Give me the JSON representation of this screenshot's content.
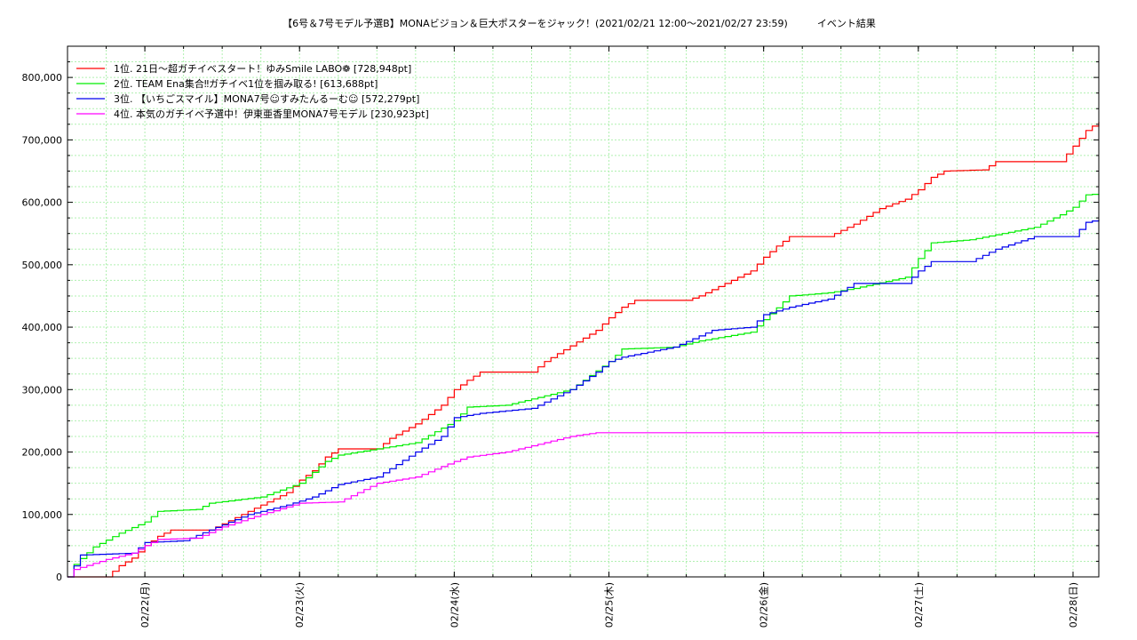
{
  "chart_data": {
    "type": "line",
    "title": "【6号＆7号モデル予選B】MONAビジョン＆巨大ポスターをジャック！(2021/02/21 12:00〜2021/02/27 23:59)　　　イベント結果",
    "xlabel": "",
    "ylabel": "",
    "x_range": [
      "2021-02-21 12:00",
      "2021-02-28 04:00"
    ],
    "ylim": [
      0,
      850000
    ],
    "y_ticks": [
      0,
      100000,
      200000,
      300000,
      400000,
      500000,
      600000,
      700000,
      800000
    ],
    "y_tick_labels": [
      "0",
      "100,000",
      "200,000",
      "300,000",
      "400,000",
      "500,000",
      "600,000",
      "700,000",
      "800,000"
    ],
    "x_ticks": [
      "2021-02-22",
      "2021-02-23",
      "2021-02-24",
      "2021-02-25",
      "2021-02-26",
      "2021-02-27",
      "2021-02-28"
    ],
    "x_tick_labels": [
      "02/22(月)",
      "02/23(火)",
      "02/24(水)",
      "02/25(木)",
      "02/26(金)",
      "02/27(土)",
      "02/28(日)"
    ],
    "grid": true,
    "legend_position": "top-left",
    "colors": {
      "axis": "#000000",
      "grid": "#b0f0b0"
    },
    "series": [
      {
        "name": "1位. 21日〜超ガチイベスタート！ゆみSmile LABO❁ [728,948pt]",
        "color": "#ff0000",
        "points": [
          [
            "2021-02-21 12:00",
            0
          ],
          [
            "2021-02-21 18:00",
            0
          ],
          [
            "2021-02-21 20:00",
            18000
          ],
          [
            "2021-02-21 22:00",
            30000
          ],
          [
            "2021-02-22 00:00",
            50000
          ],
          [
            "2021-02-22 02:00",
            65000
          ],
          [
            "2021-02-22 04:00",
            75000
          ],
          [
            "2021-02-22 10:00",
            75000
          ],
          [
            "2021-02-22 14:00",
            95000
          ],
          [
            "2021-02-22 18:00",
            115000
          ],
          [
            "2021-02-22 22:00",
            135000
          ],
          [
            "2021-02-23 00:00",
            155000
          ],
          [
            "2021-02-23 02:00",
            170000
          ],
          [
            "2021-02-23 04:00",
            192000
          ],
          [
            "2021-02-23 06:00",
            205000
          ],
          [
            "2021-02-23 12:00",
            205000
          ],
          [
            "2021-02-23 14:00",
            222000
          ],
          [
            "2021-02-23 18:00",
            245000
          ],
          [
            "2021-02-23 22:00",
            275000
          ],
          [
            "2021-02-24 00:00",
            300000
          ],
          [
            "2021-02-24 02:00",
            315000
          ],
          [
            "2021-02-24 04:00",
            328000
          ],
          [
            "2021-02-24 12:00",
            328000
          ],
          [
            "2021-02-24 14:00",
            345000
          ],
          [
            "2021-02-24 18:00",
            370000
          ],
          [
            "2021-02-24 22:00",
            395000
          ],
          [
            "2021-02-25 00:00",
            415000
          ],
          [
            "2021-02-25 02:00",
            432000
          ],
          [
            "2021-02-25 04:00",
            443000
          ],
          [
            "2021-02-25 12:00",
            443000
          ],
          [
            "2021-02-25 14:00",
            450000
          ],
          [
            "2021-02-25 18:00",
            470000
          ],
          [
            "2021-02-25 22:00",
            490000
          ],
          [
            "2021-02-26 00:00",
            512000
          ],
          [
            "2021-02-26 02:00",
            530000
          ],
          [
            "2021-02-26 04:00",
            545000
          ],
          [
            "2021-02-26 10:00",
            545000
          ],
          [
            "2021-02-26 14:00",
            565000
          ],
          [
            "2021-02-26 18:00",
            590000
          ],
          [
            "2021-02-26 22:00",
            605000
          ],
          [
            "2021-02-27 00:00",
            620000
          ],
          [
            "2021-02-27 02:00",
            640000
          ],
          [
            "2021-02-27 04:00",
            650000
          ],
          [
            "2021-02-27 10:00",
            652000
          ],
          [
            "2021-02-27 12:00",
            665000
          ],
          [
            "2021-02-27 22:00",
            665000
          ],
          [
            "2021-02-28 00:00",
            690000
          ],
          [
            "2021-02-28 02:00",
            715000
          ],
          [
            "2021-02-28 04:00",
            728948
          ]
        ]
      },
      {
        "name": "2位. TEAM Ena集合‼ガチイベ1位を掴み取る! [613,688pt]",
        "color": "#00ee00",
        "points": [
          [
            "2021-02-21 12:00",
            0
          ],
          [
            "2021-02-21 13:00",
            20000
          ],
          [
            "2021-02-21 16:00",
            48000
          ],
          [
            "2021-02-21 20:00",
            70000
          ],
          [
            "2021-02-22 00:00",
            88000
          ],
          [
            "2021-02-22 02:00",
            105000
          ],
          [
            "2021-02-22 08:00",
            108000
          ],
          [
            "2021-02-22 10:00",
            118000
          ],
          [
            "2021-02-22 18:00",
            128000
          ],
          [
            "2021-02-23 00:00",
            150000
          ],
          [
            "2021-02-23 04:00",
            185000
          ],
          [
            "2021-02-23 06:00",
            195000
          ],
          [
            "2021-02-23 12:00",
            205000
          ],
          [
            "2021-02-23 18:00",
            215000
          ],
          [
            "2021-02-24 00:00",
            250000
          ],
          [
            "2021-02-24 02:00",
            272000
          ],
          [
            "2021-02-24 08:00",
            275000
          ],
          [
            "2021-02-24 12:00",
            285000
          ],
          [
            "2021-02-24 18:00",
            300000
          ],
          [
            "2021-02-25 00:00",
            345000
          ],
          [
            "2021-02-25 02:00",
            365000
          ],
          [
            "2021-02-25 10:00",
            368000
          ],
          [
            "2021-02-25 14:00",
            378000
          ],
          [
            "2021-02-25 22:00",
            392000
          ],
          [
            "2021-02-26 00:00",
            412000
          ],
          [
            "2021-02-26 04:00",
            450000
          ],
          [
            "2021-02-26 10:00",
            455000
          ],
          [
            "2021-02-26 14:00",
            462000
          ],
          [
            "2021-02-26 22:00",
            480000
          ],
          [
            "2021-02-27 00:00",
            510000
          ],
          [
            "2021-02-27 02:00",
            535000
          ],
          [
            "2021-02-27 08:00",
            540000
          ],
          [
            "2021-02-27 12:00",
            548000
          ],
          [
            "2021-02-27 18:00",
            560000
          ],
          [
            "2021-02-27 22:00",
            580000
          ],
          [
            "2021-02-28 00:00",
            592000
          ],
          [
            "2021-02-28 02:00",
            612000
          ],
          [
            "2021-02-28 04:00",
            613688
          ]
        ]
      },
      {
        "name": "3位. 【いちごスマイル】MONA7号☺すみたんるーむ☺ [572,279pt]",
        "color": "#0000ee",
        "points": [
          [
            "2021-02-21 12:00",
            0
          ],
          [
            "2021-02-21 14:00",
            35000
          ],
          [
            "2021-02-21 22:00",
            38000
          ],
          [
            "2021-02-22 00:00",
            55000
          ],
          [
            "2021-02-22 06:00",
            58000
          ],
          [
            "2021-02-22 10:00",
            75000
          ],
          [
            "2021-02-22 16:00",
            100000
          ],
          [
            "2021-02-22 22:00",
            115000
          ],
          [
            "2021-02-23 02:00",
            128000
          ],
          [
            "2021-02-23 06:00",
            148000
          ],
          [
            "2021-02-23 12:00",
            160000
          ],
          [
            "2021-02-23 18:00",
            200000
          ],
          [
            "2021-02-23 22:00",
            225000
          ],
          [
            "2021-02-24 00:00",
            255000
          ],
          [
            "2021-02-24 04:00",
            262000
          ],
          [
            "2021-02-24 12:00",
            270000
          ],
          [
            "2021-02-24 18:00",
            300000
          ],
          [
            "2021-02-24 22:00",
            328000
          ],
          [
            "2021-02-25 00:00",
            345000
          ],
          [
            "2021-02-25 02:00",
            352000
          ],
          [
            "2021-02-25 10:00",
            368000
          ],
          [
            "2021-02-25 16:00",
            395000
          ],
          [
            "2021-02-25 22:00",
            400000
          ],
          [
            "2021-02-26 00:00",
            420000
          ],
          [
            "2021-02-26 04:00",
            432000
          ],
          [
            "2021-02-26 10:00",
            445000
          ],
          [
            "2021-02-26 14:00",
            470000
          ],
          [
            "2021-02-26 22:00",
            470000
          ],
          [
            "2021-02-27 00:00",
            490000
          ],
          [
            "2021-02-27 02:00",
            505000
          ],
          [
            "2021-02-27 08:00",
            505000
          ],
          [
            "2021-02-27 12:00",
            525000
          ],
          [
            "2021-02-27 18:00",
            545000
          ],
          [
            "2021-02-28 00:00",
            545000
          ],
          [
            "2021-02-28 02:00",
            568000
          ],
          [
            "2021-02-28 04:00",
            572279
          ]
        ]
      },
      {
        "name": "4位. 本気のガチイベ予選中！伊東亜香里MONA7号モデル [230,923pt]",
        "color": "#ff00ff",
        "points": [
          [
            "2021-02-21 12:00",
            0
          ],
          [
            "2021-02-21 13:00",
            12000
          ],
          [
            "2021-02-21 18:00",
            28000
          ],
          [
            "2021-02-21 22:00",
            38000
          ],
          [
            "2021-02-22 00:00",
            50000
          ],
          [
            "2021-02-22 02:00",
            60000
          ],
          [
            "2021-02-22 08:00",
            62000
          ],
          [
            "2021-02-22 12:00",
            80000
          ],
          [
            "2021-02-22 18:00",
            100000
          ],
          [
            "2021-02-23 00:00",
            118000
          ],
          [
            "2021-02-23 06:00",
            120000
          ],
          [
            "2021-02-23 12:00",
            150000
          ],
          [
            "2021-02-23 18:00",
            160000
          ],
          [
            "2021-02-24 00:00",
            185000
          ],
          [
            "2021-02-24 02:00",
            192000
          ],
          [
            "2021-02-24 08:00",
            200000
          ],
          [
            "2021-02-24 12:00",
            210000
          ],
          [
            "2021-02-24 18:00",
            225000
          ],
          [
            "2021-02-24 22:00",
            231000
          ],
          [
            "2021-02-28 04:00",
            230923
          ]
        ]
      }
    ]
  }
}
